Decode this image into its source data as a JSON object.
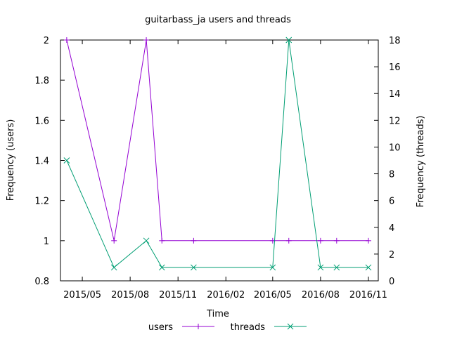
{
  "chart_data": {
    "type": "line",
    "title": "guitarbass_ja users and threads",
    "xlabel": "Time",
    "ylabel": "Frequency (users)",
    "y2label": "Frequency (threads)",
    "xlim": [
      "2015-03-20",
      "2016-11-20"
    ],
    "ylim": [
      0.8,
      2.0
    ],
    "y2lim": [
      0,
      18
    ],
    "x_ticks": [
      {
        "date": "2015-05-01",
        "label": "2015/05"
      },
      {
        "date": "2015-08-01",
        "label": "2015/08"
      },
      {
        "date": "2015-11-01",
        "label": "2015/11"
      },
      {
        "date": "2016-02-01",
        "label": "2016/02"
      },
      {
        "date": "2016-05-01",
        "label": "2016/05"
      },
      {
        "date": "2016-08-01",
        "label": "2016/08"
      },
      {
        "date": "2016-11-01",
        "label": "2016/11"
      }
    ],
    "y_ticks": [
      "0.8",
      "1",
      "1.2",
      "1.4",
      "1.6",
      "1.8",
      "2"
    ],
    "y2_ticks": [
      "0",
      "2",
      "4",
      "6",
      "8",
      "10",
      "12",
      "14",
      "16",
      "18"
    ],
    "legend_position": "bottom-center",
    "grid": false,
    "series": [
      {
        "name": "users",
        "axis": "left",
        "color": "#9400d3",
        "marker": "plus",
        "x": [
          "2015-04-01",
          "2015-07-01",
          "2015-09-01",
          "2015-10-01",
          "2015-12-01",
          "2016-05-01",
          "2016-06-01",
          "2016-08-01",
          "2016-09-01",
          "2016-11-01"
        ],
        "values": [
          2,
          1,
          2,
          1,
          1,
          1,
          1,
          1,
          1,
          1
        ]
      },
      {
        "name": "threads",
        "axis": "right",
        "color": "#009e73",
        "marker": "x",
        "x": [
          "2015-04-01",
          "2015-07-01",
          "2015-09-01",
          "2015-10-01",
          "2015-12-01",
          "2016-05-01",
          "2016-06-01",
          "2016-08-01",
          "2016-09-01",
          "2016-11-01"
        ],
        "values": [
          9,
          1,
          3,
          1,
          1,
          1,
          18,
          1,
          1,
          1
        ]
      }
    ]
  }
}
